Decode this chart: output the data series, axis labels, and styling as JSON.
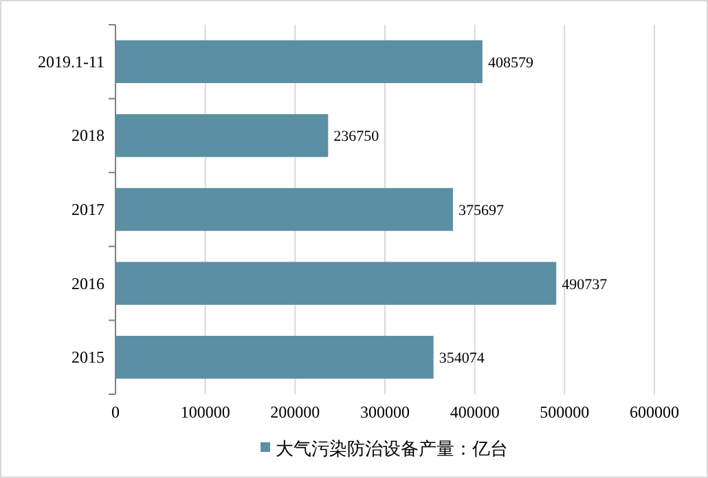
{
  "chart_data": {
    "type": "bar",
    "orientation": "horizontal",
    "categories": [
      "2019.1-11",
      "2018",
      "2017",
      "2016",
      "2015"
    ],
    "series": [
      {
        "name": "大气污染防治设备产量：亿台",
        "color": "#5b8fa3",
        "values": [
          408579,
          236750,
          375697,
          490737,
          354074
        ]
      }
    ],
    "xlim": [
      0,
      600000
    ],
    "xticks": [
      0,
      100000,
      200000,
      300000,
      400000,
      500000,
      600000
    ],
    "grid": "x",
    "legend": "bottom",
    "data_labels": true
  }
}
